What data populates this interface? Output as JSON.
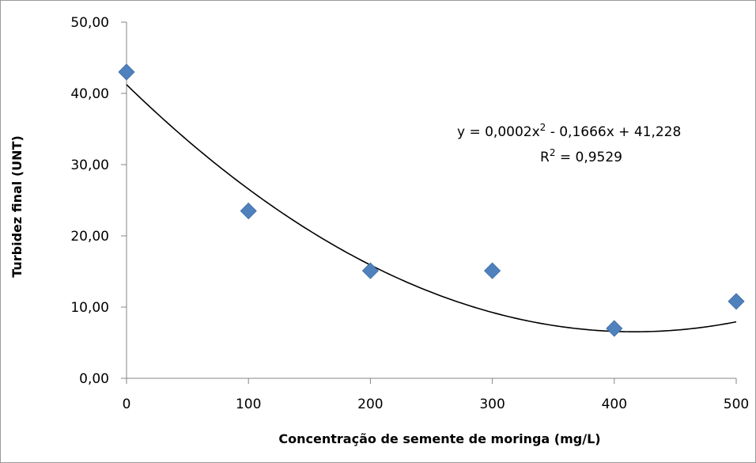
{
  "chart_data": {
    "type": "scatter",
    "title": "",
    "xlabel": "Concentração  de semente de moringa (mg/L)",
    "ylabel": "Turbidez final (UNT)",
    "xlim": [
      0,
      500
    ],
    "ylim": [
      0,
      50
    ],
    "x_ticks": [
      "0",
      "100",
      "200",
      "300",
      "400",
      "500"
    ],
    "y_ticks": [
      "0,00",
      "10,00",
      "20,00",
      "30,00",
      "40,00",
      "50,00"
    ],
    "grid": false,
    "legend": "none",
    "series": [
      {
        "x": [
          0,
          100,
          200,
          300,
          400,
          500
        ],
        "values": [
          43.0,
          23.5,
          15.1,
          15.1,
          7.0,
          10.8
        ],
        "marker": "diamond",
        "color": "#4f81bd"
      }
    ],
    "trendline": {
      "type": "polynomial",
      "order": 2,
      "coefficients": {
        "a": 0.0002,
        "b": -0.1666,
        "c": 41.228
      },
      "color": "#000000"
    },
    "annotations": {
      "equation_prefix": "y = 0,0002x",
      "equation_sup": "2",
      "equation_suffix": " - 0,1666x + 41,228",
      "r2_prefix": "R",
      "r2_sup": "2",
      "r2_suffix": " = 0,9529"
    }
  }
}
